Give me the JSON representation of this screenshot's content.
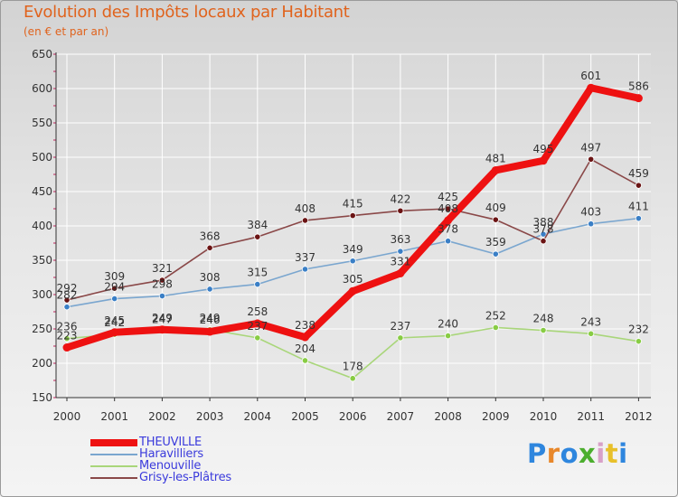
{
  "colors": {
    "background_top": "#d3d3d3",
    "grid": "#ffffff",
    "axis": "#333333",
    "tick_accent": "#c0205a",
    "title": "#e0631d",
    "legend_text": "#3b3bdc",
    "point_label": "#333333"
  },
  "chart_data": {
    "type": "line",
    "title": "Evolution des Impôts locaux par Habitant",
    "subtitle": "(en € et par an)",
    "xlabel": "",
    "ylabel": "",
    "x": [
      "2000",
      "2001",
      "2002",
      "2003",
      "2004",
      "2005",
      "2006",
      "2007",
      "2008",
      "2009",
      "2010",
      "2011",
      "2012"
    ],
    "ylim": [
      150,
      650
    ],
    "yticks": [
      150,
      200,
      250,
      300,
      350,
      400,
      450,
      500,
      550,
      600,
      650
    ],
    "grid": true,
    "legend_position": "bottom-left",
    "series": [
      {
        "name": "THEUVILLE",
        "color": "#ee1111",
        "marker_fill": "#ee1111",
        "emphasis": "thick",
        "values": [
          223,
          245,
          249,
          246,
          258,
          238,
          305,
          331,
          408,
          481,
          495,
          601,
          586
        ]
      },
      {
        "name": "Haravilliers",
        "color": "#7aa6cf",
        "marker_fill": "#3a7fc6",
        "values": [
          282,
          294,
          298,
          308,
          315,
          337,
          349,
          363,
          378,
          359,
          388,
          403,
          411
        ]
      },
      {
        "name": "Menouville",
        "color": "#a9d67a",
        "marker_fill": "#88cc44",
        "values": [
          236,
          242,
          247,
          249,
          237,
          204,
          178,
          237,
          240,
          252,
          248,
          243,
          232
        ]
      },
      {
        "name": "Grisy-les-Plâtres",
        "color": "#8a4848",
        "marker_fill": "#6b1414",
        "values": [
          292,
          309,
          321,
          368,
          384,
          408,
          415,
          422,
          425,
          409,
          378,
          497,
          459
        ]
      }
    ]
  },
  "branding": {
    "text": "Proxiti"
  }
}
